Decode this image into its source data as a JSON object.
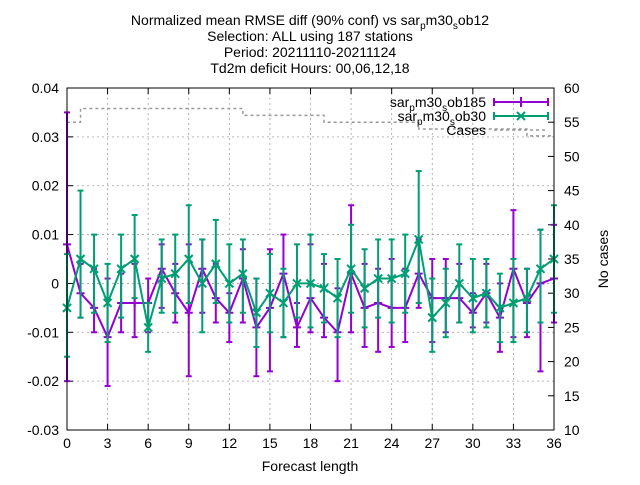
{
  "chart_data": {
    "type": "line",
    "title_lines": [
      "Normalized mean RMSE diff (90% conf) vs sar_pm30_sob12",
      "Selection: ALL using   187 stations",
      "Period: 20211110-20211124",
      "Td2m deficit   Hours: 00,06,12,18"
    ],
    "xlabel": "Forecast length",
    "ylabel_right": "No cases",
    "xlim": [
      0,
      36
    ],
    "ylim": [
      -0.03,
      0.04
    ],
    "y2lim": [
      10,
      60
    ],
    "x_ticks": [
      "0",
      "3",
      "6",
      "9",
      "12",
      "15",
      "18",
      "21",
      "24",
      "27",
      "30",
      "33",
      "36"
    ],
    "y_ticks": [
      "-0.03",
      "-0.02",
      "-0.01",
      "0",
      "0.01",
      "0.02",
      "0.03",
      "0.04"
    ],
    "y2_ticks": [
      "10",
      "15",
      "20",
      "25",
      "30",
      "35",
      "40",
      "45",
      "50",
      "55",
      "60"
    ],
    "grid": true,
    "legend_position": "top-right",
    "x": [
      0,
      1,
      2,
      3,
      4,
      5,
      6,
      7,
      8,
      9,
      10,
      11,
      12,
      13,
      14,
      15,
      16,
      17,
      18,
      19,
      20,
      21,
      22,
      23,
      24,
      25,
      26,
      27,
      28,
      29,
      30,
      31,
      32,
      33,
      34,
      35,
      36
    ],
    "series": [
      {
        "name": "sar_pm30_sob185",
        "color": "#9400d3",
        "marker": "plus",
        "values": [
          0.008,
          -0.002,
          -0.005,
          -0.011,
          -0.004,
          -0.004,
          -0.004,
          0.003,
          -0.002,
          -0.006,
          0.003,
          -0.003,
          -0.006,
          0.001,
          -0.009,
          -0.005,
          0.002,
          -0.009,
          -0.003,
          -0.007,
          -0.01,
          0.002,
          -0.005,
          -0.004,
          -0.005,
          -0.005,
          0.002,
          -0.003,
          -0.003,
          -0.003,
          -0.006,
          -0.002,
          -0.007,
          0.003,
          -0.004,
          0.0,
          0.001
        ],
        "err_low": [
          -0.02,
          -0.007,
          -0.01,
          -0.021,
          -0.01,
          -0.011,
          -0.01,
          -0.005,
          -0.008,
          -0.019,
          -0.006,
          -0.008,
          -0.012,
          -0.008,
          -0.019,
          -0.018,
          -0.011,
          -0.013,
          -0.01,
          -0.011,
          -0.02,
          -0.01,
          -0.013,
          -0.014,
          -0.013,
          -0.012,
          -0.005,
          -0.012,
          -0.01,
          -0.008,
          -0.009,
          -0.008,
          -0.014,
          -0.011,
          -0.011,
          -0.018,
          -0.008
        ],
        "err_high": [
          0.035,
          0.004,
          0.003,
          0.001,
          0.002,
          0.004,
          0.001,
          0.008,
          0.004,
          0.008,
          0.009,
          0.004,
          -0.002,
          0.007,
          0.001,
          0.007,
          0.01,
          -0.004,
          0.008,
          0.004,
          -0.001,
          0.016,
          0.004,
          0.003,
          0.005,
          0.003,
          0.009,
          0.005,
          0.005,
          0.004,
          -0.002,
          0.004,
          0.0,
          0.015,
          0.003,
          0.011,
          0.012
        ]
      },
      {
        "name": "sar_pm30_sob30",
        "color": "#009e73",
        "marker": "cross",
        "values": [
          -0.005,
          0.005,
          0.003,
          -0.004,
          0.003,
          0.005,
          -0.009,
          0.001,
          0.002,
          0.005,
          0.0,
          0.004,
          0.0,
          0.002,
          -0.006,
          -0.002,
          -0.004,
          0.0,
          0.0,
          -0.001,
          -0.003,
          0.003,
          -0.001,
          0.001,
          0.001,
          0.002,
          0.009,
          -0.007,
          -0.004,
          0.0,
          -0.003,
          -0.002,
          -0.005,
          -0.004,
          -0.003,
          0.003,
          0.005
        ],
        "err_low": [
          -0.015,
          -0.007,
          -0.006,
          -0.012,
          -0.007,
          -0.003,
          -0.014,
          -0.006,
          -0.006,
          -0.004,
          -0.01,
          -0.004,
          -0.008,
          -0.006,
          -0.013,
          -0.01,
          -0.011,
          -0.007,
          -0.009,
          -0.008,
          -0.011,
          -0.006,
          -0.009,
          -0.007,
          -0.008,
          -0.006,
          -0.004,
          -0.014,
          -0.011,
          -0.008,
          -0.01,
          -0.009,
          -0.012,
          -0.012,
          -0.01,
          -0.008,
          -0.006
        ],
        "err_high": [
          0.006,
          0.019,
          0.01,
          0.004,
          0.01,
          0.014,
          -0.004,
          0.009,
          0.01,
          0.016,
          0.009,
          0.013,
          0.008,
          0.009,
          0.001,
          0.006,
          0.003,
          0.008,
          0.01,
          0.006,
          0.005,
          0.012,
          0.007,
          0.009,
          0.009,
          0.01,
          0.023,
          0.001,
          0.003,
          0.008,
          0.005,
          0.005,
          0.002,
          0.005,
          0.003,
          0.011,
          0.016
        ]
      },
      {
        "name": "Cases",
        "color": "#999999",
        "dashed": true,
        "axis": "right",
        "values": [
          55,
          57,
          57,
          57,
          57,
          57,
          57,
          57,
          57,
          57,
          57,
          57,
          57,
          56,
          56,
          56,
          56,
          56,
          56,
          55,
          55,
          55,
          55,
          55,
          55,
          55,
          54,
          54,
          54,
          54,
          54,
          54,
          54,
          54,
          53,
          53,
          53
        ]
      }
    ]
  }
}
